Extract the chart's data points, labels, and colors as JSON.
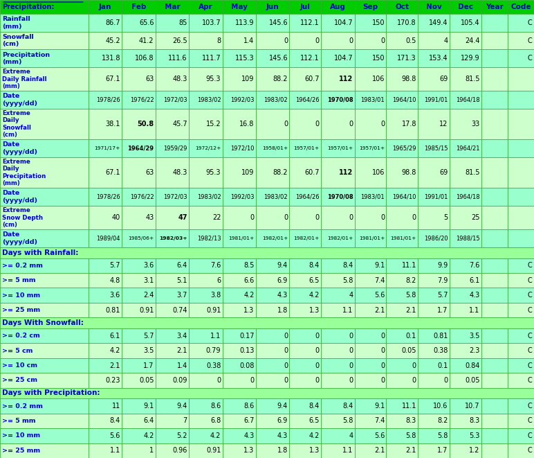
{
  "header_row": [
    "Precipitation:",
    "Jan",
    "Feb",
    "Mar",
    "Apr",
    "May",
    "Jun",
    "Jul",
    "Aug",
    "Sep",
    "Oct",
    "Nov",
    "Dec",
    "Year",
    "Code"
  ],
  "rows": [
    {
      "label": "Rainfall\n(mm)",
      "vals": [
        "86.7",
        "65.6",
        "85",
        "103.7",
        "113.9",
        "145.6",
        "112.1",
        "104.7",
        "150",
        "170.8",
        "149.4",
        "105.4",
        "",
        "C"
      ],
      "bold_cols": [],
      "section_header": false,
      "light_bg": false
    },
    {
      "label": "Snowfall\n(cm)",
      "vals": [
        "45.2",
        "41.2",
        "26.5",
        "8",
        "1.4",
        "0",
        "0",
        "0",
        "0",
        "0.5",
        "4",
        "24.4",
        "",
        "C"
      ],
      "bold_cols": [],
      "section_header": false,
      "light_bg": true
    },
    {
      "label": "Precipitation\n(mm)",
      "vals": [
        "131.8",
        "106.8",
        "111.6",
        "111.7",
        "115.3",
        "145.6",
        "112.1",
        "104.7",
        "150",
        "171.3",
        "153.4",
        "129.9",
        "",
        "C"
      ],
      "bold_cols": [],
      "section_header": false,
      "light_bg": false
    },
    {
      "label": "Extreme\nDaily Rainfall\n(mm)",
      "vals": [
        "67.1",
        "63",
        "48.3",
        "95.3",
        "109",
        "88.2",
        "60.7",
        "112",
        "106",
        "98.8",
        "69",
        "81.5",
        "",
        ""
      ],
      "bold_cols": [
        7
      ],
      "section_header": false,
      "light_bg": true
    },
    {
      "label": "Date\n(yyyy/dd)",
      "vals": [
        "1978/26",
        "1976/22",
        "1972/03",
        "1983/02",
        "1992/03",
        "1983/02",
        "1964/26",
        "1970/08",
        "1983/01",
        "1964/10",
        "1991/01",
        "1964/18",
        "",
        ""
      ],
      "bold_cols": [
        7
      ],
      "section_header": false,
      "light_bg": false
    },
    {
      "label": "Extreme\nDaily\nSnowfall\n(cm)",
      "vals": [
        "38.1",
        "50.8",
        "45.7",
        "15.2",
        "16.8",
        "0",
        "0",
        "0",
        "0",
        "17.8",
        "12",
        "33",
        "",
        ""
      ],
      "bold_cols": [
        1
      ],
      "section_header": false,
      "light_bg": true
    },
    {
      "label": "Date\n(yyyy/dd)",
      "vals": [
        "1971/17+",
        "1964/29",
        "1959/29",
        "1972/12+",
        "1972/10",
        "1958/01+",
        "1957/01+",
        "1957/01+",
        "1957/01+",
        "1965/29",
        "1985/15",
        "1964/21",
        "",
        ""
      ],
      "bold_cols": [
        1
      ],
      "section_header": false,
      "light_bg": false
    },
    {
      "label": "Extreme\nDaily\nPrecipitation\n(mm)",
      "vals": [
        "67.1",
        "63",
        "48.3",
        "95.3",
        "109",
        "88.2",
        "60.7",
        "112",
        "106",
        "98.8",
        "69",
        "81.5",
        "",
        ""
      ],
      "bold_cols": [
        7
      ],
      "section_header": false,
      "light_bg": true
    },
    {
      "label": "Date\n(yyyy/dd)",
      "vals": [
        "1978/26",
        "1976/22",
        "1972/03",
        "1983/02",
        "1992/03",
        "1983/02",
        "1964/26",
        "1970/08",
        "1983/01",
        "1964/10",
        "1991/01",
        "1964/18",
        "",
        ""
      ],
      "bold_cols": [
        7
      ],
      "section_header": false,
      "light_bg": false
    },
    {
      "label": "Extreme\nSnow Depth\n(cm)",
      "vals": [
        "40",
        "43",
        "47",
        "22",
        "0",
        "0",
        "0",
        "0",
        "0",
        "0",
        "5",
        "25",
        "",
        ""
      ],
      "bold_cols": [
        2
      ],
      "section_header": false,
      "light_bg": true
    },
    {
      "label": "Date\n(yyyy/dd)",
      "vals": [
        "1989/04",
        "1985/06+",
        "1982/03+",
        "1982/13",
        "1981/01+",
        "1982/01+",
        "1982/01+",
        "1982/01+",
        "1981/01+",
        "1981/01+",
        "1986/20",
        "1988/15",
        "",
        ""
      ],
      "bold_cols": [
        2
      ],
      "section_header": false,
      "light_bg": false
    },
    {
      "label": "Days with Rainfall:",
      "vals": [
        "",
        "",
        "",
        "",
        "",
        "",
        "",
        "",
        "",
        "",
        "",
        "",
        "",
        ""
      ],
      "bold_cols": [],
      "section_header": true,
      "light_bg": false
    },
    {
      "label": ">= 0.2 mm",
      "vals": [
        "5.7",
        "3.6",
        "6.4",
        "7.6",
        "8.5",
        "9.4",
        "8.4",
        "8.4",
        "9.1",
        "11.1",
        "9.9",
        "7.6",
        "",
        "C"
      ],
      "bold_cols": [],
      "section_header": false,
      "light_bg": false
    },
    {
      "label": ">= 5 mm",
      "vals": [
        "4.8",
        "3.1",
        "5.1",
        "6",
        "6.6",
        "6.9",
        "6.5",
        "5.8",
        "7.4",
        "8.2",
        "7.9",
        "6.1",
        "",
        "C"
      ],
      "bold_cols": [],
      "section_header": false,
      "light_bg": true
    },
    {
      "label": ">= 10 mm",
      "vals": [
        "3.6",
        "2.4",
        "3.7",
        "3.8",
        "4.2",
        "4.3",
        "4.2",
        "4",
        "5.6",
        "5.8",
        "5.7",
        "4.3",
        "",
        "C"
      ],
      "bold_cols": [],
      "section_header": false,
      "light_bg": false
    },
    {
      "label": ">= 25 mm",
      "vals": [
        "0.81",
        "0.91",
        "0.74",
        "0.91",
        "1.3",
        "1.8",
        "1.3",
        "1.1",
        "2.1",
        "2.1",
        "1.7",
        "1.1",
        "",
        "C"
      ],
      "bold_cols": [],
      "section_header": false,
      "light_bg": true
    },
    {
      "label": "Days With Snowfall:",
      "vals": [
        "",
        "",
        "",
        "",
        "",
        "",
        "",
        "",
        "",
        "",
        "",
        "",
        "",
        ""
      ],
      "bold_cols": [],
      "section_header": true,
      "light_bg": false
    },
    {
      "label": ">= 0.2 cm",
      "vals": [
        "6.1",
        "5.7",
        "3.4",
        "1.1",
        "0.17",
        "0",
        "0",
        "0",
        "0",
        "0.1",
        "0.81",
        "3.5",
        "",
        "C"
      ],
      "bold_cols": [],
      "section_header": false,
      "light_bg": false
    },
    {
      "label": ">= 5 cm",
      "vals": [
        "4.2",
        "3.5",
        "2.1",
        "0.79",
        "0.13",
        "0",
        "0",
        "0",
        "0",
        "0.05",
        "0.38",
        "2.3",
        "",
        "C"
      ],
      "bold_cols": [],
      "section_header": false,
      "light_bg": true
    },
    {
      "label": ">= 10 cm",
      "vals": [
        "2.1",
        "1.7",
        "1.4",
        "0.38",
        "0.08",
        "0",
        "0",
        "0",
        "0",
        "0",
        "0.1",
        "0.84",
        "",
        "C"
      ],
      "bold_cols": [],
      "section_header": false,
      "light_bg": false
    },
    {
      "label": ">= 25 cm",
      "vals": [
        "0.23",
        "0.05",
        "0.09",
        "0",
        "0",
        "0",
        "0",
        "0",
        "0",
        "0",
        "0",
        "0.05",
        "",
        "C"
      ],
      "bold_cols": [],
      "section_header": false,
      "light_bg": true
    },
    {
      "label": "Days with Precipitation:",
      "vals": [
        "",
        "",
        "",
        "",
        "",
        "",
        "",
        "",
        "",
        "",
        "",
        "",
        "",
        ""
      ],
      "bold_cols": [],
      "section_header": true,
      "light_bg": false
    },
    {
      "label": ">= 0.2 mm",
      "vals": [
        "11",
        "9.1",
        "9.4",
        "8.6",
        "8.6",
        "9.4",
        "8.4",
        "8.4",
        "9.1",
        "11.1",
        "10.6",
        "10.7",
        "",
        "C"
      ],
      "bold_cols": [],
      "section_header": false,
      "light_bg": false
    },
    {
      "label": ">= 5 mm",
      "vals": [
        "8.4",
        "6.4",
        "7",
        "6.8",
        "6.7",
        "6.9",
        "6.5",
        "5.8",
        "7.4",
        "8.3",
        "8.2",
        "8.3",
        "",
        "C"
      ],
      "bold_cols": [],
      "section_header": false,
      "light_bg": true
    },
    {
      "label": ">= 10 mm",
      "vals": [
        "5.6",
        "4.2",
        "5.2",
        "4.2",
        "4.3",
        "4.3",
        "4.2",
        "4",
        "5.6",
        "5.8",
        "5.8",
        "5.3",
        "",
        "C"
      ],
      "bold_cols": [],
      "section_header": false,
      "light_bg": false
    },
    {
      "label": ">= 25 mm",
      "vals": [
        "1.1",
        "1",
        "0.96",
        "0.91",
        "1.3",
        "1.8",
        "1.3",
        "1.1",
        "2.1",
        "2.1",
        "1.7",
        "1.2",
        "",
        "C"
      ],
      "bold_cols": [],
      "section_header": false,
      "light_bg": true
    }
  ],
  "header_bg": "#00cc00",
  "section_header_bg": "#99ff99",
  "light_row_bg": "#ccffcc",
  "dark_row_bg": "#99ffcc",
  "border_color": "#33cc33",
  "header_text_color": "#0000cc",
  "label_col_color": "#0000cc"
}
